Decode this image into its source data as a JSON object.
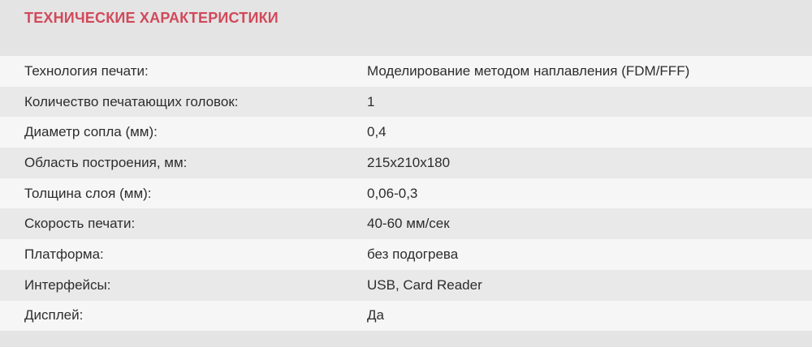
{
  "title": "ТЕХНИЧЕСКИЕ ХАРАКТЕРИСТИКИ",
  "colors": {
    "page_bg": "#e4e4e4",
    "row_light": "#f6f6f6",
    "row_dark": "#e9e9e9",
    "title": "#d1495a",
    "text": "#2d2d2d"
  },
  "specs_table": {
    "rows": [
      {
        "label": "Технология печати:",
        "value": "Моделирование методом наплавления (FDM/FFF)"
      },
      {
        "label": "Количество печатающих головок:",
        "value": "1"
      },
      {
        "label": "Диаметр сопла (мм):",
        "value": "0,4"
      },
      {
        "label": "Область построения, мм:",
        "value": "215x210x180"
      },
      {
        "label": "Толщина слоя (мм):",
        "value": "0,06-0,3"
      },
      {
        "label": "Скорость печати:",
        "value": "40-60 мм/сек"
      },
      {
        "label": "Платформа:",
        "value": "без подогрева"
      },
      {
        "label": "Интерфейсы:",
        "value": "USB, Card Reader"
      },
      {
        "label": "Дисплей:",
        "value": "Да"
      }
    ]
  }
}
